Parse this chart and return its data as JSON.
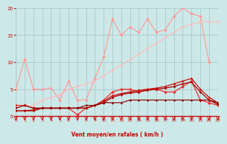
{
  "bg_color": "#cce8e8",
  "grid_color": "#aacccc",
  "xlabel": "Vent moyen/en rafales ( km/h )",
  "xlabel_color": "#cc0000",
  "tick_color": "#cc0000",
  "xmin": 0,
  "xmax": 23,
  "ymin": 0,
  "ymax": 20,
  "yticks": [
    0,
    5,
    10,
    15,
    20
  ],
  "series": [
    {
      "name": "pink_jagged",
      "color": "#ff9999",
      "linewidth": 0.9,
      "markersize": 2.5,
      "x": [
        0,
        1,
        2,
        3,
        4,
        5,
        6,
        7,
        8,
        9,
        10,
        11,
        12,
        13,
        14,
        15,
        16,
        17,
        18,
        19,
        20,
        21,
        22
      ],
      "y": [
        5.0,
        10.5,
        5.0,
        5.0,
        5.2,
        3.0,
        6.5,
        3.0,
        3.0,
        7.0,
        11.0,
        18.0,
        15.0,
        16.5,
        15.5,
        18.0,
        15.5,
        16.0,
        18.5,
        20.0,
        19.0,
        18.5,
        10.0
      ]
    },
    {
      "name": "pink_smooth",
      "color": "#ffbbbb",
      "linewidth": 0.9,
      "markersize": 2.0,
      "x": [
        0,
        1,
        2,
        3,
        4,
        5,
        6,
        7,
        8,
        9,
        10,
        11,
        12,
        13,
        14,
        15,
        16,
        17,
        18,
        19,
        20,
        21,
        22,
        23
      ],
      "y": [
        1.5,
        2.0,
        2.0,
        3.0,
        3.5,
        4.0,
        5.0,
        5.5,
        6.0,
        6.5,
        7.5,
        8.5,
        9.5,
        10.5,
        11.5,
        12.5,
        13.5,
        14.5,
        15.5,
        16.5,
        17.0,
        17.5,
        17.5,
        17.5
      ]
    },
    {
      "name": "red_max",
      "color": "#ee3333",
      "linewidth": 1.0,
      "markersize": 2.5,
      "x": [
        0,
        1,
        2,
        3,
        4,
        5,
        6,
        7,
        8,
        9,
        10,
        11,
        12,
        13,
        14,
        15,
        16,
        17,
        18,
        19,
        20,
        21,
        22,
        23
      ],
      "y": [
        2.0,
        2.0,
        1.5,
        1.5,
        1.5,
        1.5,
        1.5,
        0.3,
        1.5,
        2.0,
        3.0,
        4.5,
        5.0,
        5.0,
        4.5,
        5.0,
        5.0,
        4.5,
        4.5,
        5.5,
        6.5,
        3.0,
        2.5,
        2.0
      ]
    },
    {
      "name": "red_mid1",
      "color": "#cc1111",
      "linewidth": 1.0,
      "markersize": 2.0,
      "x": [
        0,
        1,
        2,
        3,
        4,
        5,
        6,
        7,
        8,
        9,
        10,
        11,
        12,
        13,
        14,
        15,
        16,
        17,
        18,
        19,
        20,
        21,
        22,
        23
      ],
      "y": [
        1.0,
        1.0,
        1.2,
        1.5,
        1.5,
        1.5,
        1.5,
        1.5,
        1.5,
        2.0,
        2.8,
        3.8,
        4.2,
        4.5,
        4.8,
        5.0,
        5.2,
        5.5,
        6.0,
        6.5,
        7.0,
        5.0,
        3.5,
        2.5
      ]
    },
    {
      "name": "red_mid2",
      "color": "#aa0000",
      "linewidth": 1.0,
      "markersize": 2.0,
      "x": [
        0,
        1,
        2,
        3,
        4,
        5,
        6,
        7,
        8,
        9,
        10,
        11,
        12,
        13,
        14,
        15,
        16,
        17,
        18,
        19,
        20,
        21,
        22,
        23
      ],
      "y": [
        1.0,
        1.0,
        1.0,
        1.5,
        1.5,
        1.5,
        1.5,
        1.5,
        1.5,
        2.0,
        2.5,
        3.5,
        4.0,
        4.3,
        4.5,
        4.8,
        5.0,
        5.2,
        5.5,
        6.0,
        6.3,
        4.5,
        3.0,
        2.2
      ]
    },
    {
      "name": "dark_red_flat",
      "color": "#880000",
      "linewidth": 0.9,
      "markersize": 1.8,
      "x": [
        0,
        1,
        2,
        3,
        4,
        5,
        6,
        7,
        8,
        9,
        10,
        11,
        12,
        13,
        14,
        15,
        16,
        17,
        18,
        19,
        20,
        21,
        22,
        23
      ],
      "y": [
        1.5,
        2.0,
        1.5,
        1.5,
        1.5,
        1.5,
        1.5,
        1.5,
        2.0,
        2.0,
        2.5,
        2.5,
        2.5,
        3.0,
        3.0,
        3.0,
        3.0,
        3.0,
        3.0,
        3.0,
        3.0,
        3.0,
        3.0,
        2.5
      ]
    }
  ]
}
